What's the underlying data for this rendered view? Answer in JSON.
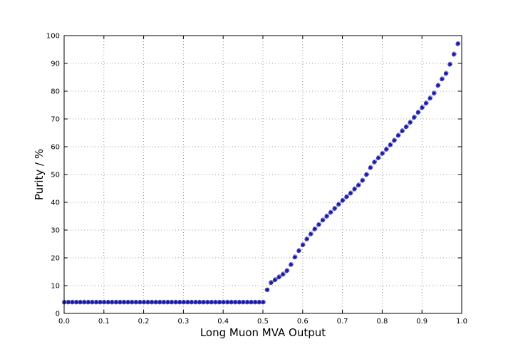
{
  "chart_data": {
    "type": "scatter",
    "title": "",
    "xlabel": "Long Muon MVA Output",
    "ylabel": "Purity / %",
    "xlim": [
      0.0,
      1.0
    ],
    "ylim": [
      0,
      100
    ],
    "xticks": [
      "0.0",
      "0.1",
      "0.2",
      "0.3",
      "0.4",
      "0.5",
      "0.6",
      "0.7",
      "0.8",
      "0.9",
      "1.0"
    ],
    "yticks": [
      "0",
      "10",
      "20",
      "30",
      "40",
      "50",
      "60",
      "70",
      "80",
      "90",
      "100"
    ],
    "grid": true,
    "series": [
      {
        "marker": "filled-circle",
        "color": "#1a1aa8",
        "x": [
          0.0,
          0.01,
          0.02,
          0.03,
          0.04,
          0.05,
          0.06,
          0.07,
          0.08,
          0.09,
          0.1,
          0.11,
          0.12,
          0.13,
          0.14,
          0.15,
          0.16,
          0.17,
          0.18,
          0.19,
          0.2,
          0.21,
          0.22,
          0.23,
          0.24,
          0.25,
          0.26,
          0.27,
          0.28,
          0.29,
          0.3,
          0.31,
          0.32,
          0.33,
          0.34,
          0.35,
          0.36,
          0.37,
          0.38,
          0.39,
          0.4,
          0.41,
          0.42,
          0.43,
          0.44,
          0.45,
          0.46,
          0.47,
          0.48,
          0.49,
          0.5,
          0.51,
          0.52,
          0.53,
          0.54,
          0.55,
          0.56,
          0.57,
          0.58,
          0.59,
          0.6,
          0.61,
          0.62,
          0.63,
          0.64,
          0.65,
          0.66,
          0.67,
          0.68,
          0.69,
          0.7,
          0.71,
          0.72,
          0.73,
          0.74,
          0.75,
          0.76,
          0.77,
          0.78,
          0.79,
          0.8,
          0.81,
          0.82,
          0.83,
          0.84,
          0.85,
          0.86,
          0.87,
          0.88,
          0.89,
          0.9,
          0.91,
          0.92,
          0.93,
          0.94,
          0.95,
          0.96,
          0.97,
          0.98,
          0.99
        ],
        "y": [
          4,
          4,
          4,
          4,
          4,
          4,
          4,
          4,
          4,
          4,
          4,
          4,
          4,
          4,
          4,
          4,
          4,
          4,
          4,
          4,
          4,
          4,
          4,
          4,
          4,
          4,
          4,
          4,
          4,
          4,
          4,
          4,
          4,
          4,
          4,
          4,
          4,
          4,
          4,
          4,
          4,
          4,
          4,
          4,
          4,
          4,
          4,
          4,
          4,
          4,
          4,
          8.5,
          11,
          12,
          13,
          14,
          15.3,
          17.5,
          20.2,
          22.5,
          24.6,
          26.7,
          28.5,
          30.3,
          31.9,
          33.5,
          34.9,
          36.3,
          37.7,
          39.2,
          40.6,
          41.9,
          43.2,
          44.7,
          46.1,
          47.8,
          49.9,
          52.4,
          54.4,
          55.9,
          57.5,
          59.0,
          60.6,
          62.2,
          64.0,
          65.6,
          67.1,
          68.7,
          70.5,
          72.3,
          74.0,
          75.6,
          77.4,
          79.2,
          82.0,
          84.3,
          86.3,
          89.6,
          93.2,
          97.0
        ]
      },
      {
        "marker": "open-circle",
        "color": "#5a5ad0",
        "x": [
          0.0,
          0.01,
          0.02,
          0.03,
          0.04,
          0.05,
          0.06,
          0.07,
          0.08,
          0.09,
          0.1,
          0.11,
          0.12,
          0.13,
          0.14,
          0.15,
          0.16,
          0.17,
          0.18,
          0.19,
          0.2,
          0.21,
          0.22,
          0.23,
          0.24,
          0.25,
          0.26,
          0.27,
          0.28,
          0.29,
          0.3,
          0.31,
          0.32,
          0.33,
          0.34,
          0.35,
          0.36,
          0.37,
          0.38,
          0.39,
          0.4,
          0.41,
          0.42,
          0.43,
          0.44,
          0.45,
          0.46,
          0.47,
          0.48,
          0.49,
          0.5,
          0.51,
          0.52,
          0.53,
          0.54,
          0.55,
          0.56,
          0.57,
          0.58,
          0.59,
          0.6,
          0.61,
          0.62,
          0.63,
          0.64,
          0.65,
          0.66,
          0.67,
          0.68,
          0.69,
          0.7,
          0.71,
          0.72,
          0.73,
          0.74,
          0.75,
          0.76,
          0.77,
          0.78,
          0.79,
          0.8,
          0.81,
          0.82,
          0.83,
          0.84,
          0.85,
          0.86,
          0.87,
          0.88,
          0.89,
          0.9,
          0.91,
          0.92,
          0.93,
          0.94,
          0.95,
          0.96,
          0.97,
          0.98,
          0.99
        ],
        "y": [
          4,
          4,
          4,
          4,
          4,
          4,
          4,
          4,
          4,
          4,
          4,
          4,
          4,
          4,
          4,
          4,
          4,
          4,
          4,
          4,
          4,
          4,
          4,
          4,
          4,
          4,
          4,
          4,
          4,
          4,
          4,
          4,
          4,
          4,
          4,
          4,
          4,
          4,
          4,
          4,
          4,
          4,
          4,
          4,
          4,
          4,
          4,
          4,
          4,
          4,
          4,
          8.4,
          11.1,
          12.1,
          13.1,
          14.1,
          15.4,
          17.6,
          20.3,
          22.6,
          24.7,
          26.8,
          28.6,
          30.4,
          32.0,
          33.6,
          35.0,
          36.4,
          37.8,
          39.3,
          40.7,
          42.0,
          43.3,
          44.8,
          46.2,
          47.9,
          50.0,
          52.5,
          54.5,
          56.0,
          57.6,
          59.1,
          60.7,
          62.3,
          64.1,
          65.7,
          67.2,
          68.8,
          70.6,
          72.4,
          74.1,
          75.7,
          77.5,
          79.3,
          82.1,
          84.4,
          86.4,
          89.7,
          93.3,
          97.1
        ]
      }
    ]
  }
}
